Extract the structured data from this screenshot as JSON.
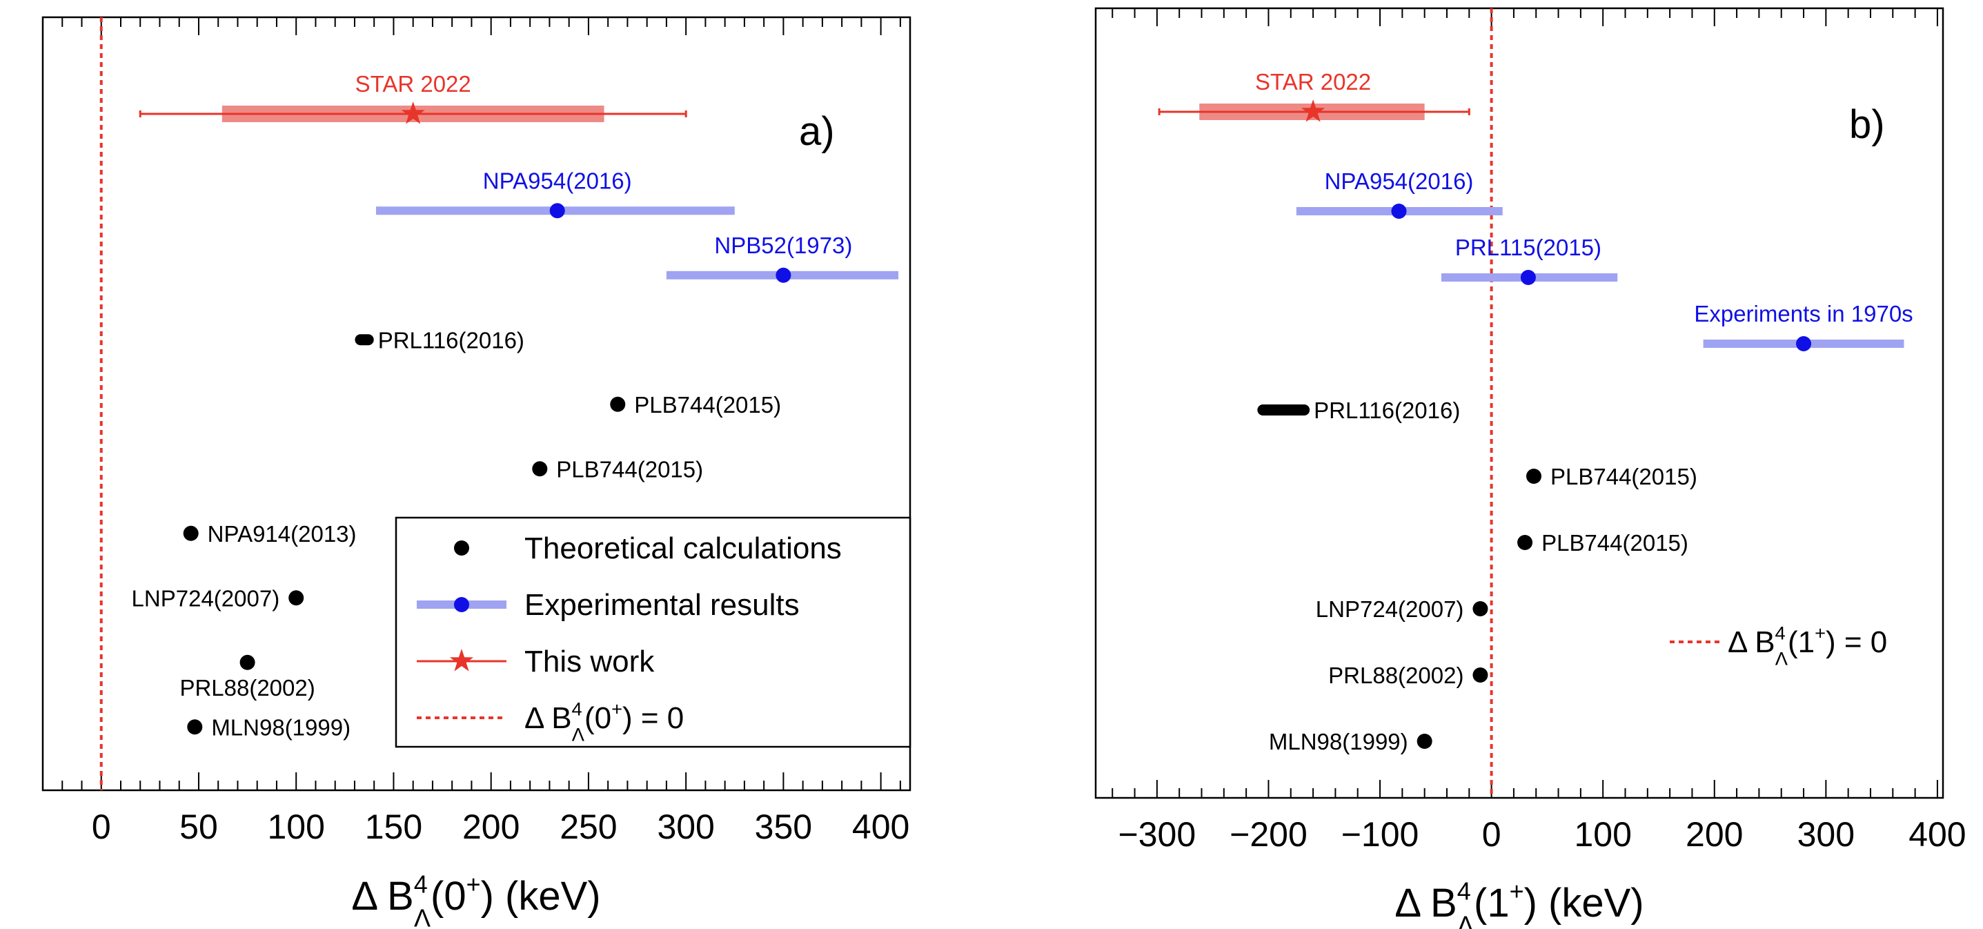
{
  "colors": {
    "star": "#e8352a",
    "star_band": "#ee8a86",
    "experiment": "#1010e6",
    "experiment_band": "#9fa3f2",
    "theory": "#000000",
    "zero_line": "#e8352a",
    "axis": "#000000"
  },
  "chart_data": [
    {
      "type": "scatter",
      "panel_label": "a)",
      "xlabel": {
        "prefix": "Δ B",
        "sup": "4",
        "sub": "Λ",
        "state": "(0",
        "state_sup": "+",
        "suffix": ") (keV)"
      },
      "xlim": [
        -30,
        415
      ],
      "x_ticks": [
        0,
        50,
        100,
        150,
        200,
        250,
        300,
        350,
        400
      ],
      "x_tick_labels": [
        "0",
        "50",
        "100",
        "150",
        "200",
        "250",
        "300",
        "350",
        "400"
      ],
      "grid": false,
      "reference_line_x": 0,
      "rows": 11,
      "points": [
        {
          "label": "STAR 2022",
          "group": "this_work",
          "row": 0,
          "x": 160,
          "sys_low": 62,
          "sys_high": 258,
          "stat_low": 20,
          "stat_high": 300,
          "label_pos": "above"
        },
        {
          "label": "NPA954(2016)",
          "group": "experiment",
          "row": 1.5,
          "x": 234,
          "err_low": 141,
          "err_high": 325,
          "label_pos": "above"
        },
        {
          "label": "NPB52(1973)",
          "group": "experiment",
          "row": 2.5,
          "x": 350,
          "err_low": 290,
          "err_high": 409,
          "label_pos": "above"
        },
        {
          "label": "PRL116(2016)",
          "group": "theory",
          "row": 3.5,
          "x": 135,
          "err_low": 133,
          "err_high": 137,
          "label_pos": "right"
        },
        {
          "label": "PLB744(2015)",
          "group": "theory",
          "row": 4.5,
          "x": 265,
          "label_pos": "right"
        },
        {
          "label": "PLB744(2015)",
          "group": "theory",
          "row": 5.5,
          "x": 225,
          "label_pos": "right"
        },
        {
          "label": "NPA914(2013)",
          "group": "theory",
          "row": 6.5,
          "x": 46,
          "label_pos": "right"
        },
        {
          "label": "LNP724(2007)",
          "group": "theory",
          "row": 7.5,
          "x": 100,
          "label_pos": "left"
        },
        {
          "label": "PRL88(2002)",
          "group": "theory",
          "row": 8.5,
          "x": 75,
          "label_pos": "below"
        },
        {
          "label": "MLN98(1999)",
          "group": "theory",
          "row": 9.5,
          "x": 48,
          "label_pos": "right"
        }
      ],
      "legend": {
        "placement": "bottom-right",
        "entries": [
          {
            "symbol": "dot",
            "text": "Theoretical calculations"
          },
          {
            "symbol": "experiment",
            "text": "Experimental results"
          },
          {
            "symbol": "star",
            "text": "This work"
          },
          {
            "symbol": "dashed",
            "prefix": "Δ B",
            "sup": "4",
            "sub": "Λ",
            "state": "(0",
            "state_sup": "+",
            "suffix": ") = 0"
          }
        ]
      }
    },
    {
      "type": "scatter",
      "panel_label": "b)",
      "xlabel": {
        "prefix": "Δ B",
        "sup": "4",
        "sub": "Λ",
        "state": "(1",
        "state_sup": "+",
        "suffix": ") (keV)"
      },
      "xlim": [
        -355,
        405
      ],
      "x_ticks": [
        -300,
        -200,
        -100,
        0,
        100,
        200,
        300,
        400
      ],
      "x_tick_labels": [
        "−300",
        "−200",
        "−100",
        "0",
        "100",
        "200",
        "300",
        "400"
      ],
      "grid": false,
      "reference_line_x": 0,
      "rows": 11,
      "points": [
        {
          "label": "STAR 2022",
          "group": "this_work",
          "row": 0,
          "x": -160,
          "sys_low": -262,
          "sys_high": -60,
          "stat_low": -298,
          "stat_high": -20,
          "label_pos": "above"
        },
        {
          "label": "NPA954(2016)",
          "group": "experiment",
          "row": 1.5,
          "x": -83,
          "err_low": -175,
          "err_high": 10,
          "label_pos": "above"
        },
        {
          "label": "PRL115(2015)",
          "group": "experiment",
          "row": 2.5,
          "x": 33,
          "err_low": -45,
          "err_high": 113,
          "label_pos": "above"
        },
        {
          "label": "Experiments in 1970s",
          "group": "experiment",
          "row": 3.5,
          "x": 280,
          "err_low": 190,
          "err_high": 370,
          "label_pos": "above"
        },
        {
          "label": "PRL116(2016)",
          "group": "theory",
          "row": 4.5,
          "x": -185,
          "err_low": -205,
          "err_high": -168,
          "label_pos": "right"
        },
        {
          "label": "PLB744(2015)",
          "group": "theory",
          "row": 5.5,
          "x": 38,
          "label_pos": "right"
        },
        {
          "label": "PLB744(2015)",
          "group": "theory",
          "row": 6.5,
          "x": 30,
          "label_pos": "right"
        },
        {
          "label": "LNP724(2007)",
          "group": "theory",
          "row": 7.5,
          "x": -10,
          "label_pos": "left"
        },
        {
          "label": "PRL88(2002)",
          "group": "theory",
          "row": 8.5,
          "x": -10,
          "label_pos": "left"
        },
        {
          "label": "MLN98(1999)",
          "group": "theory",
          "row": 9.5,
          "x": -60,
          "label_pos": "left"
        }
      ],
      "legend": {
        "placement": "right",
        "entries": [
          {
            "symbol": "dashed",
            "prefix": "Δ B",
            "sup": "4",
            "sub": "Λ",
            "state": "(1",
            "state_sup": "+",
            "suffix": ") = 0"
          }
        ]
      }
    }
  ]
}
